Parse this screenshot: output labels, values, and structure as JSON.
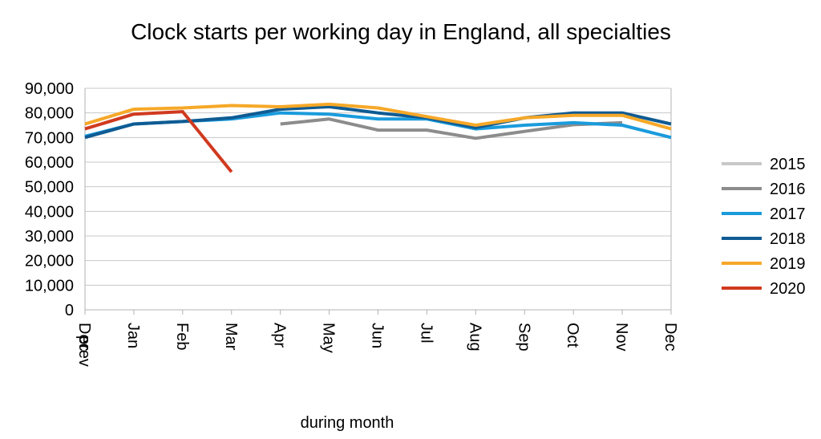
{
  "chart_data": {
    "type": "line",
    "title": "Clock starts per working day in England, all specialties",
    "xlabel": "during month",
    "ylabel": "",
    "categories": [
      "Dec prev",
      "Jan",
      "Feb",
      "Mar",
      "Apr",
      "May",
      "Jun",
      "Jul",
      "Aug",
      "Sep",
      "Oct",
      "Nov",
      "Dec"
    ],
    "y_tick_labels": [
      "0",
      "10,000",
      "20,000",
      "30,000",
      "40,000",
      "50,000",
      "60,000",
      "70,000",
      "80,000",
      "90,000"
    ],
    "ylim": [
      0,
      90000
    ],
    "grid": true,
    "legend_position": "right",
    "series": [
      {
        "name": "2015",
        "color": "#c8c8c8",
        "values": [
          null,
          null,
          null,
          null,
          null,
          null,
          null,
          null,
          null,
          null,
          null,
          null,
          null
        ]
      },
      {
        "name": "2016",
        "color": "#8c8c8c",
        "values": [
          null,
          null,
          null,
          null,
          75500,
          77500,
          73000,
          73000,
          69700,
          72500,
          75200,
          76000,
          null
        ]
      },
      {
        "name": "2017",
        "color": "#1a9bdc",
        "values": [
          70500,
          75500,
          76500,
          77500,
          80000,
          79500,
          77500,
          77500,
          73500,
          75000,
          76000,
          75000,
          70000
        ]
      },
      {
        "name": "2018",
        "color": "#0f5b93",
        "values": [
          70000,
          75500,
          76500,
          78000,
          81500,
          82500,
          80000,
          78000,
          74000,
          78000,
          80000,
          80000,
          75500
        ]
      },
      {
        "name": "2019",
        "color": "#f6a828",
        "values": [
          75500,
          81500,
          82000,
          83000,
          82500,
          83500,
          82000,
          78500,
          75000,
          78000,
          79000,
          79000,
          73500
        ]
      },
      {
        "name": "2020",
        "color": "#d03a1f",
        "values": [
          73500,
          79500,
          80500,
          56000,
          null,
          null,
          null,
          null,
          null,
          null,
          null,
          null,
          null
        ]
      }
    ]
  }
}
